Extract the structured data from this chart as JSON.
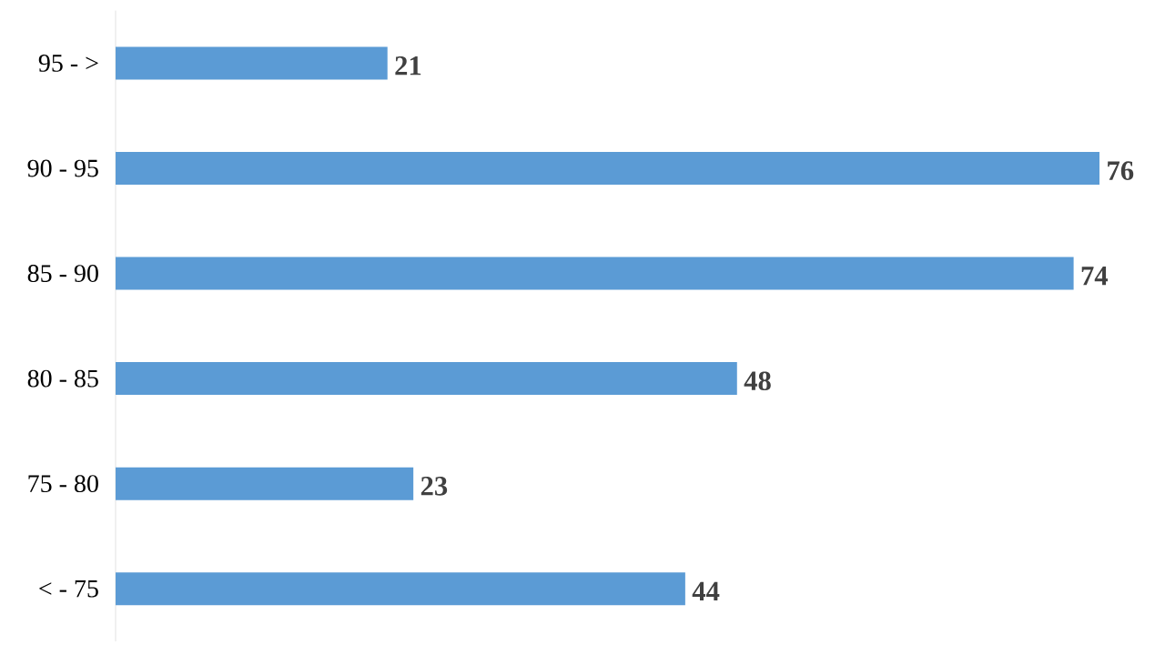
{
  "chart_data": {
    "type": "bar",
    "orientation": "horizontal",
    "categories": [
      "95 - >",
      "90 - 95",
      "85 - 90",
      "80 - 85",
      "75 - 80",
      "< - 75"
    ],
    "values": [
      21,
      76,
      74,
      48,
      23,
      44
    ],
    "color": "#5b9bd5",
    "data_labels": true
  }
}
